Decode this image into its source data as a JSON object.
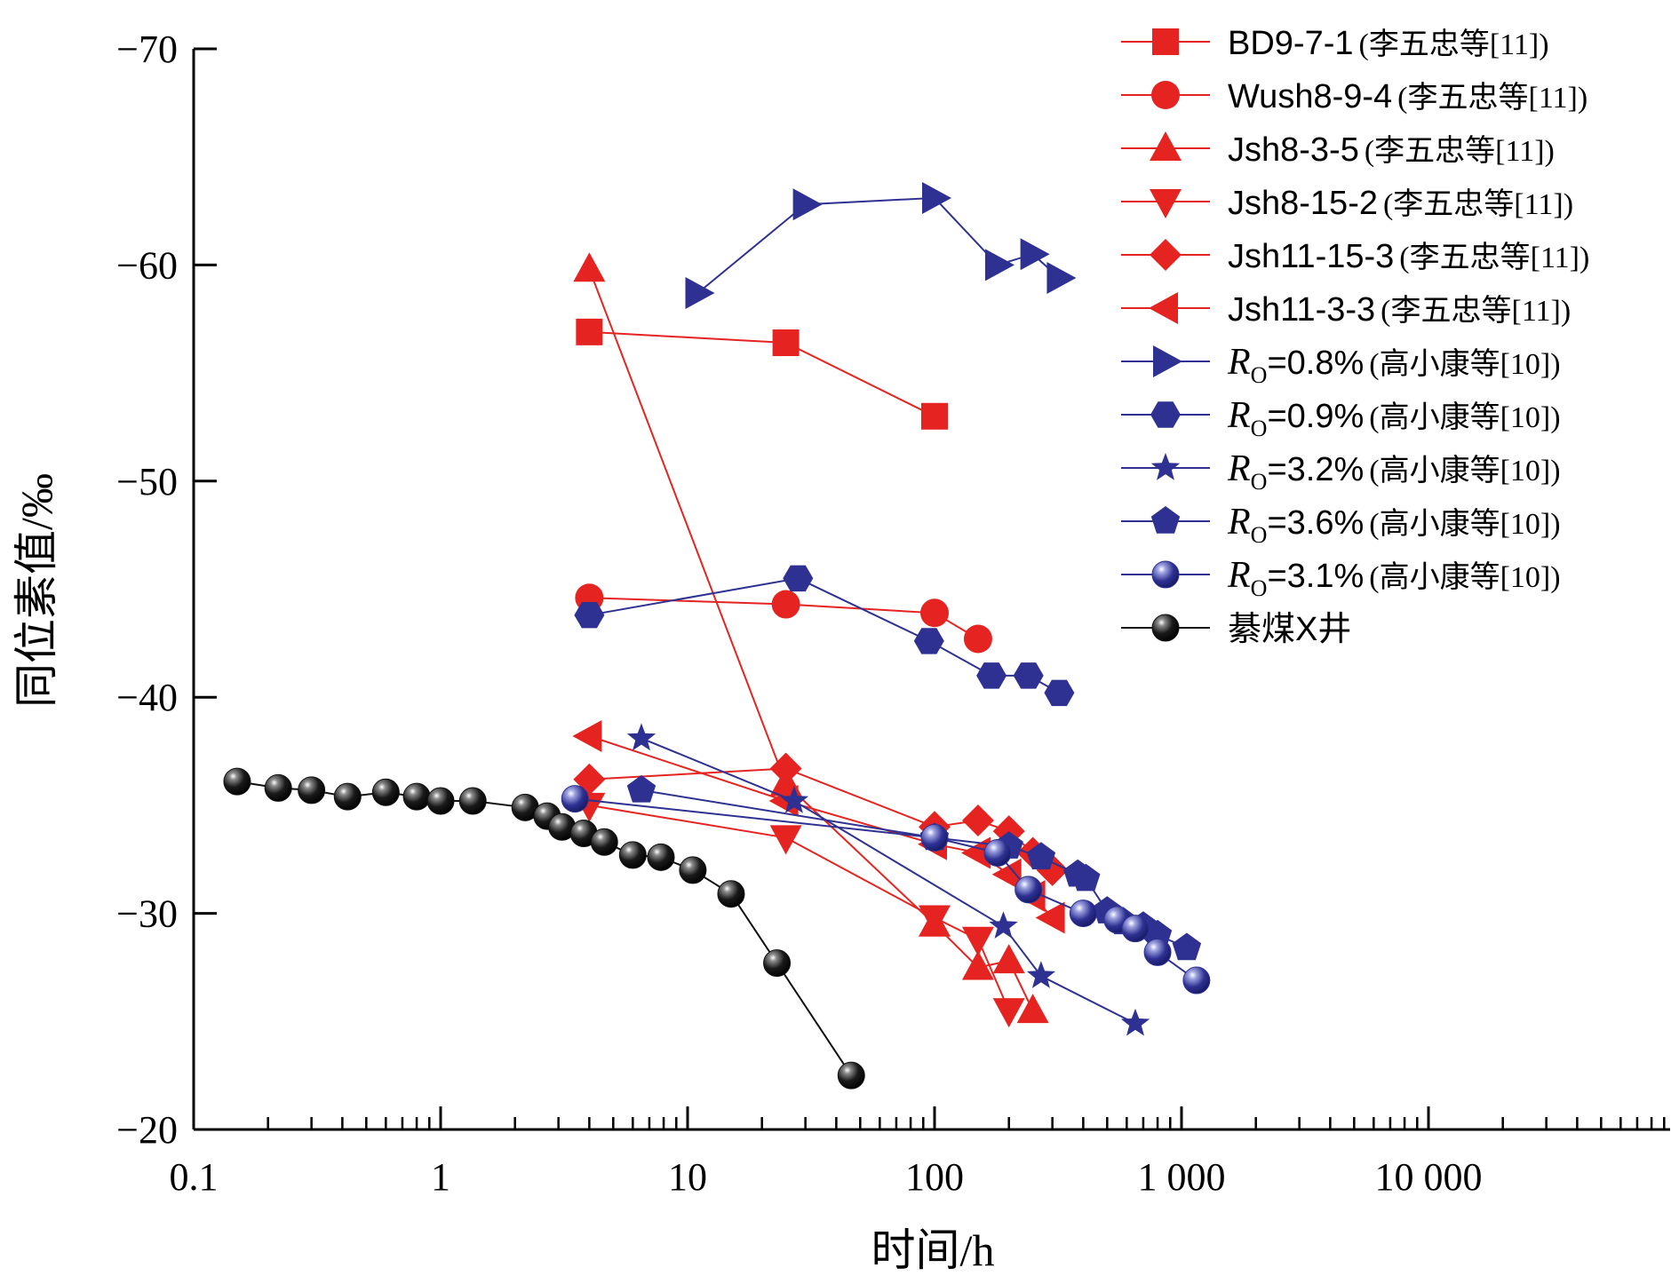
{
  "chart_data": {
    "type": "scatter",
    "xlabel": "时间/h",
    "ylabel": "同位素值/‰",
    "x_scale": "log",
    "xlim": [
      0.1,
      100000
    ],
    "ylim": [
      -20,
      -70
    ],
    "x_ticks": [
      {
        "value": 0.1,
        "label": "0.1"
      },
      {
        "value": 1,
        "label": "1"
      },
      {
        "value": 10,
        "label": "10"
      },
      {
        "value": 100,
        "label": "100"
      },
      {
        "value": 1000,
        "label": "1 000"
      },
      {
        "value": 10000,
        "label": "10 000"
      }
    ],
    "y_ticks": [
      {
        "value": -70,
        "label": "−70"
      },
      {
        "value": -60,
        "label": "−60"
      },
      {
        "value": -50,
        "label": "−50"
      },
      {
        "value": -40,
        "label": "−40"
      },
      {
        "value": -30,
        "label": "−30"
      },
      {
        "value": -20,
        "label": "−20"
      }
    ],
    "grid": false,
    "legend_position": "top-right",
    "series": [
      {
        "name": "BD9-7-1",
        "ref": "(李五忠等[11])",
        "color": "#e52421",
        "marker": "square",
        "x": [
          4,
          25,
          100
        ],
        "y": [
          -56.9,
          -56.4,
          -53.0
        ]
      },
      {
        "name": "Wush8-9-4",
        "ref": "(李五忠等[11])",
        "color": "#e52421",
        "marker": "circle",
        "x": [
          4,
          25,
          100,
          150
        ],
        "y": [
          -44.6,
          -44.3,
          -43.9,
          -42.7
        ]
      },
      {
        "name": "Jsh8-3-5",
        "ref": "(李五忠等[11])",
        "color": "#e52421",
        "marker": "triangle-up",
        "x": [
          4,
          25,
          100,
          150,
          200,
          250
        ],
        "y": [
          -59.8,
          -36.0,
          -29.5,
          -27.5,
          -27.8,
          -25.5
        ]
      },
      {
        "name": "Jsh8-15-2",
        "ref": "(李五忠等[11])",
        "color": "#e52421",
        "marker": "triangle-down",
        "x": [
          4,
          25,
          100,
          150,
          200
        ],
        "y": [
          -35.0,
          -33.5,
          -29.8,
          -28.8,
          -25.5
        ]
      },
      {
        "name": "Jsh11-15-3",
        "ref": "(李五忠等[11])",
        "color": "#e52421",
        "marker": "diamond",
        "x": [
          4,
          25,
          100,
          150,
          200,
          250,
          300
        ],
        "y": [
          -36.2,
          -36.7,
          -34.0,
          -34.3,
          -33.8,
          -32.8,
          -32.0
        ]
      },
      {
        "name": "Jsh11-3-3",
        "ref": "(李五忠等[11])",
        "color": "#e52421",
        "marker": "triangle-left",
        "x": [
          4,
          25,
          100,
          150,
          200,
          250,
          300
        ],
        "y": [
          -38.2,
          -35.2,
          -33.2,
          -32.8,
          -31.8,
          -30.8,
          -29.8
        ]
      },
      {
        "name": "Ro=0.8%",
        "ref": "(高小康等[10])",
        "color": "#2e3192",
        "marker": "triangle-right",
        "x": [
          11,
          30,
          100,
          180,
          250,
          320
        ],
        "y": [
          -58.7,
          -62.8,
          -63.1,
          -60.0,
          -60.5,
          -59.4
        ]
      },
      {
        "name": "Ro=0.9%",
        "ref": "(高小康等[10])",
        "color": "#2e3192",
        "marker": "hexagon",
        "x": [
          4,
          28,
          95,
          170,
          240,
          320
        ],
        "y": [
          -43.8,
          -45.5,
          -42.6,
          -41.0,
          -41.0,
          -40.2
        ]
      },
      {
        "name": "Ro=3.2%",
        "ref": "(高小康等[10])",
        "color": "#2e3192",
        "marker": "star",
        "x": [
          6.5,
          27,
          190,
          270,
          650
        ],
        "y": [
          -38.1,
          -35.2,
          -29.4,
          -27.1,
          -24.9
        ]
      },
      {
        "name": "Ro=3.6%",
        "ref": "(高小康等[10])",
        "color": "#2e3192",
        "marker": "pentagon",
        "x": [
          6.5,
          100,
          200,
          270,
          380,
          410,
          500,
          580,
          700,
          800,
          1050
        ],
        "y": [
          -35.7,
          -33.5,
          -33.1,
          -32.6,
          -31.8,
          -31.6,
          -30.1,
          -29.6,
          -29.4,
          -29.0,
          -28.4
        ]
      },
      {
        "name": "Ro=3.1%",
        "ref": "(高小康等[10])",
        "color": "#2e3192",
        "marker": "sphere",
        "x": [
          3.5,
          100,
          180,
          240,
          400,
          550,
          650,
          800,
          1150
        ],
        "y": [
          -35.3,
          -33.5,
          -32.8,
          -31.1,
          -30.0,
          -29.7,
          -29.3,
          -28.2,
          -26.9
        ]
      },
      {
        "name": "綦煤X井",
        "ref": "",
        "color": "#111111",
        "marker": "sphere",
        "x": [
          0.15,
          0.22,
          0.3,
          0.42,
          0.6,
          0.8,
          1.0,
          1.35,
          2.2,
          2.7,
          3.1,
          3.8,
          4.6,
          6.0,
          7.8,
          10.5,
          15.0,
          23.0,
          46.0
        ],
        "y": [
          -36.1,
          -35.8,
          -35.7,
          -35.4,
          -35.6,
          -35.4,
          -35.2,
          -35.2,
          -34.9,
          -34.5,
          -34.0,
          -33.7,
          -33.3,
          -32.7,
          -32.6,
          -32.0,
          -30.9,
          -27.7,
          -22.5
        ]
      }
    ]
  }
}
